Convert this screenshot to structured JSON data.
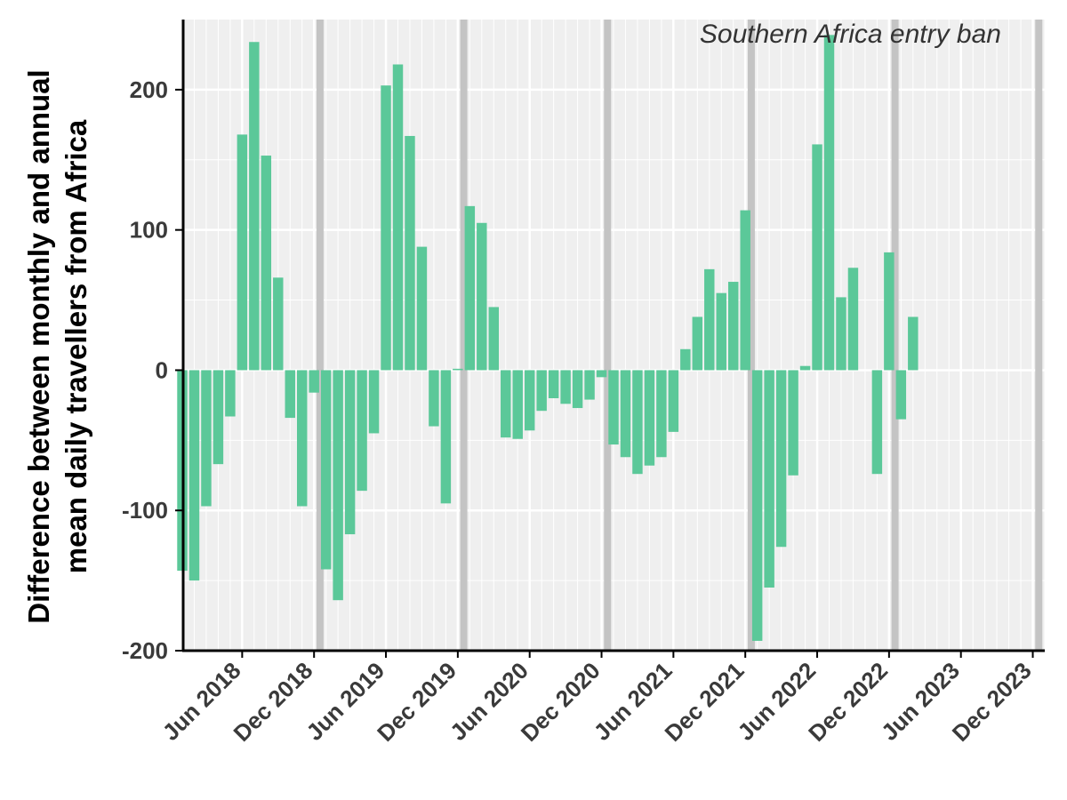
{
  "chart_data": {
    "type": "bar",
    "title": "",
    "xlabel": "",
    "ylabel_lines": [
      "Difference between monthly and annual",
      "mean daily travellers from Africa"
    ],
    "annotation": "Southern Africa entry ban",
    "ylim": [
      -200,
      250
    ],
    "y_ticks": [
      -200,
      -100,
      0,
      100,
      200
    ],
    "x_start": "2018-01",
    "x_end": "2024-01",
    "x_ticks": [
      {
        "month": "2018-06",
        "label": "Jun 2018"
      },
      {
        "month": "2018-12",
        "label": "Dec 2018"
      },
      {
        "month": "2019-06",
        "label": "Jun 2019"
      },
      {
        "month": "2019-12",
        "label": "Dec 2019"
      },
      {
        "month": "2020-06",
        "label": "Jun 2020"
      },
      {
        "month": "2020-12",
        "label": "Dec 2020"
      },
      {
        "month": "2021-06",
        "label": "Jun 2021"
      },
      {
        "month": "2021-12",
        "label": "Dec 2021"
      },
      {
        "month": "2022-06",
        "label": "Jun 2022"
      },
      {
        "month": "2022-12",
        "label": "Dec 2022"
      },
      {
        "month": "2023-06",
        "label": "Jun 2023"
      },
      {
        "month": "2023-12",
        "label": "Dec 2023"
      }
    ],
    "highlight_months": [
      "2019-01",
      "2020-01",
      "2021-01",
      "2022-01",
      "2023-01",
      "2024-01"
    ],
    "x": [
      "2018-01",
      "2018-02",
      "2018-03",
      "2018-04",
      "2018-05",
      "2018-06",
      "2018-07",
      "2018-08",
      "2018-09",
      "2018-10",
      "2018-11",
      "2018-12",
      "2019-01",
      "2019-02",
      "2019-03",
      "2019-04",
      "2019-05",
      "2019-06",
      "2019-07",
      "2019-08",
      "2019-09",
      "2019-10",
      "2019-11",
      "2019-12",
      "2020-01",
      "2020-02",
      "2020-03",
      "2020-04",
      "2020-05",
      "2020-06",
      "2020-07",
      "2020-08",
      "2020-09",
      "2020-10",
      "2020-11",
      "2020-12",
      "2021-01",
      "2021-02",
      "2021-03",
      "2021-04",
      "2021-05",
      "2021-06",
      "2021-07",
      "2021-08",
      "2021-09",
      "2021-10",
      "2021-11",
      "2021-12",
      "2022-01",
      "2022-02",
      "2022-03",
      "2022-04",
      "2022-05",
      "2022-06",
      "2022-07",
      "2022-08",
      "2022-09",
      "2022-10",
      "2022-11",
      "2022-12",
      "2023-01",
      "2023-02",
      "2023-03",
      "2023-04",
      "2023-05",
      "2023-06"
    ],
    "values": [
      -143,
      -150,
      -97,
      -67,
      -33,
      168,
      234,
      153,
      66,
      -34,
      -97,
      -16,
      -142,
      -164,
      -117,
      -86,
      -45,
      203,
      218,
      167,
      88,
      -40,
      -95,
      1,
      117,
      105,
      45,
      -48,
      -49,
      -43,
      -29,
      -20,
      -24,
      -27,
      -21,
      -5,
      -53,
      -62,
      -74,
      -68,
      -62,
      -44,
      15,
      38,
      72,
      55,
      63,
      114,
      -193,
      -155,
      -126,
      -75,
      3,
      161,
      239,
      52,
      73,
      0,
      -74,
      84,
      -35,
      38,
      0,
      0,
      0,
      0
    ],
    "colors": {
      "bar": "#5bc899",
      "highlight_band": "#c4c4c4",
      "panel_background": "#efefef",
      "grid": "#ffffff",
      "axis": "#000000"
    }
  }
}
